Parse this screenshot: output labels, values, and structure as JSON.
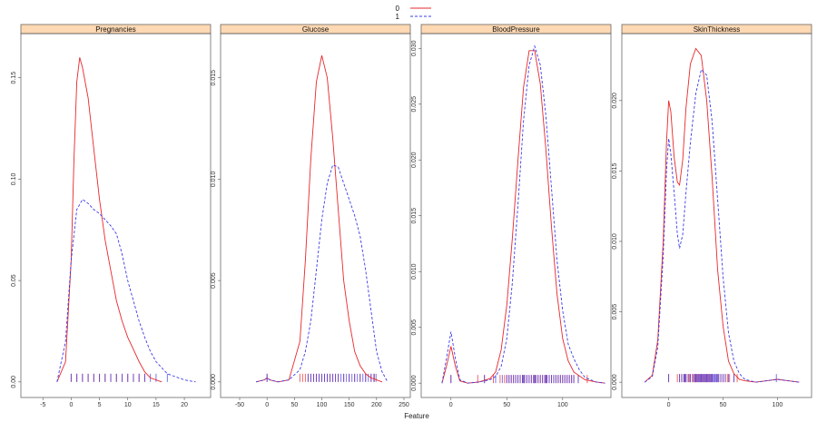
{
  "chart_data": {
    "type": "line",
    "xlabel": "Feature",
    "ylabel": "",
    "legend": {
      "placement": "top-center",
      "entries": [
        {
          "label": "0",
          "color": "#e8272a",
          "dash": "solid"
        },
        {
          "label": "1",
          "color": "#3b3be8",
          "dash": "dashed"
        }
      ]
    },
    "rug": {
      "color_0": "#e8272a",
      "color_1": "#3b3be8"
    },
    "strip_color": "#ffd9b3",
    "panels": [
      {
        "title": "Pregnancies",
        "xlim": [
          -6,
          24
        ],
        "ylim": [
          -0.005,
          0.17
        ],
        "xticks": [
          -5,
          0,
          5,
          10,
          15,
          20
        ],
        "yticks": [
          0.0,
          0.05,
          0.1,
          0.15
        ],
        "ytick_labels": [
          "0.00",
          "0.05",
          "0.10",
          "0.15"
        ],
        "series": [
          {
            "name": "0",
            "x": [
              -2.5,
              -1,
              0,
              0.5,
              1,
              1.5,
              2,
              3,
              4,
              5,
              6,
              7,
              8,
              9,
              10,
              11,
              12,
              13,
              14,
              16
            ],
            "y": [
              0,
              0.01,
              0.06,
              0.11,
              0.148,
              0.16,
              0.155,
              0.14,
              0.115,
              0.09,
              0.07,
              0.055,
              0.04,
              0.03,
              0.022,
              0.016,
              0.01,
              0.005,
              0.002,
              0
            ]
          },
          {
            "name": "1",
            "x": [
              -2.5,
              -1,
              0,
              1,
              2,
              3,
              4,
              5,
              6,
              7,
              8,
              9,
              10,
              11,
              12,
              13,
              14,
              15,
              17,
              20,
              22
            ],
            "y": [
              0,
              0.02,
              0.06,
              0.085,
              0.09,
              0.088,
              0.085,
              0.083,
              0.08,
              0.077,
              0.073,
              0.063,
              0.05,
              0.04,
              0.03,
              0.022,
              0.015,
              0.01,
              0.004,
              0.001,
              0
            ]
          }
        ],
        "rug0": [
          0,
          1,
          2,
          3,
          4,
          5,
          6,
          7,
          8,
          9,
          10,
          11,
          12,
          13
        ],
        "rug1": [
          0,
          1,
          2,
          3,
          4,
          5,
          6,
          7,
          8,
          9,
          10,
          11,
          12,
          13,
          14,
          15,
          17
        ]
      },
      {
        "title": "Glucose",
        "xlim": [
          -55,
          255
        ],
        "ylim": [
          -0.0005,
          0.017
        ],
        "xticks": [
          -50,
          0,
          50,
          100,
          150,
          200,
          250
        ],
        "yticks": [
          0.0,
          0.005,
          0.01,
          0.015
        ],
        "ytick_labels": [
          "0.000",
          "0.005",
          "0.010",
          "0.015"
        ],
        "series": [
          {
            "name": "0",
            "x": [
              -20,
              -5,
              0,
              5,
              20,
              40,
              60,
              70,
              80,
              90,
              100,
              110,
              120,
              130,
              140,
              150,
              160,
              170,
              180,
              190,
              200,
              210
            ],
            "y": [
              0,
              0.0001,
              0.0002,
              0.0001,
              0,
              0.0001,
              0.002,
              0.006,
              0.011,
              0.0148,
              0.0161,
              0.015,
              0.012,
              0.0085,
              0.005,
              0.003,
              0.0015,
              0.0008,
              0.0004,
              0.0002,
              0.0001,
              0
            ]
          },
          {
            "name": "1",
            "x": [
              -20,
              -5,
              0,
              5,
              20,
              40,
              60,
              70,
              80,
              90,
              100,
              110,
              120,
              130,
              140,
              150,
              160,
              170,
              180,
              190,
              200,
              210,
              220
            ],
            "y": [
              0,
              0.0001,
              0.0002,
              0.0001,
              0,
              0.0001,
              0.0006,
              0.0015,
              0.003,
              0.0055,
              0.008,
              0.0098,
              0.0107,
              0.0106,
              0.0098,
              0.009,
              0.0082,
              0.0072,
              0.0055,
              0.0035,
              0.0015,
              0.0005,
              0
            ]
          }
        ],
        "rug0": [
          0,
          60,
          65,
          70,
          75,
          80,
          85,
          90,
          95,
          100,
          105,
          110,
          115,
          120,
          125,
          130,
          140,
          150,
          160,
          170,
          180,
          190,
          196
        ],
        "rug1": [
          0,
          75,
          80,
          85,
          90,
          95,
          100,
          105,
          110,
          115,
          120,
          125,
          130,
          135,
          140,
          145,
          150,
          155,
          160,
          165,
          170,
          175,
          180,
          185,
          190,
          195,
          199
        ]
      },
      {
        "title": "BloodPressure",
        "xlim": [
          -12,
          140
        ],
        "ylim": [
          -0.0008,
          0.031
        ],
        "xticks": [
          0,
          50,
          100
        ],
        "yticks": [
          0.0,
          0.005,
          0.01,
          0.015,
          0.02,
          0.025,
          0.03
        ],
        "ytick_labels": [
          "0.000",
          "0.005",
          "0.010",
          "0.015",
          "0.020",
          "0.025",
          "0.030"
        ],
        "series": [
          {
            "name": "0",
            "x": [
              -8,
              -4,
              0,
              4,
              8,
              15,
              25,
              35,
              40,
              45,
              50,
              55,
              60,
              65,
              70,
              75,
              80,
              85,
              90,
              95,
              100,
              105,
              110,
              120,
              130,
              138
            ],
            "y": [
              0,
              0.0015,
              0.0033,
              0.0015,
              0.0002,
              0,
              0.0001,
              0.0004,
              0.001,
              0.003,
              0.007,
              0.013,
              0.02,
              0.0265,
              0.0298,
              0.0298,
              0.0268,
              0.021,
              0.014,
              0.008,
              0.004,
              0.002,
              0.001,
              0.0003,
              0.0001,
              0
            ]
          },
          {
            "name": "1",
            "x": [
              -8,
              -4,
              0,
              4,
              8,
              15,
              25,
              35,
              40,
              45,
              50,
              55,
              60,
              65,
              70,
              75,
              80,
              85,
              90,
              95,
              100,
              105,
              110,
              115,
              120,
              130,
              138
            ],
            "y": [
              0,
              0.0022,
              0.0046,
              0.0022,
              0.0003,
              0,
              0.0001,
              0.0003,
              0.0006,
              0.0015,
              0.004,
              0.009,
              0.016,
              0.0235,
              0.0285,
              0.0302,
              0.0285,
              0.024,
              0.0175,
              0.011,
              0.0065,
              0.0035,
              0.0022,
              0.0012,
              0.0005,
              0.0001,
              0
            ]
          }
        ],
        "rug0": [
          0,
          24,
          30,
          38,
          44,
          48,
          50,
          52,
          54,
          56,
          58,
          60,
          62,
          64,
          65,
          66,
          68,
          70,
          72,
          74,
          75,
          76,
          78,
          80,
          82,
          84,
          85,
          86,
          88,
          90,
          92,
          94,
          96,
          98,
          100,
          102,
          104,
          106,
          108,
          110,
          114,
          122
        ],
        "rug1": [
          0,
          30,
          40,
          46,
          50,
          52,
          54,
          56,
          58,
          60,
          62,
          64,
          65,
          66,
          68,
          70,
          72,
          74,
          75,
          76,
          78,
          80,
          82,
          84,
          85,
          86,
          88,
          90,
          92,
          94,
          96,
          98,
          100,
          102,
          104,
          106,
          108,
          110,
          114
        ]
      },
      {
        "title": "SkinThickness",
        "xlim": [
          -28,
          128
        ],
        "ylim": [
          -0.0007,
          0.0245
        ],
        "xticks": [
          0,
          50,
          100
        ],
        "yticks": [
          0.0,
          0.005,
          0.01,
          0.015,
          0.02
        ],
        "ytick_labels": [
          "0.000",
          "0.005",
          "0.010",
          "0.015",
          "0.020"
        ],
        "series": [
          {
            "name": "0",
            "x": [
              -22,
              -15,
              -10,
              -5,
              -2,
              0,
              2,
              5,
              8,
              10,
              13,
              16,
              20,
              25,
              30,
              35,
              40,
              45,
              50,
              55,
              60,
              65,
              70,
              80,
              90,
              100,
              110,
              120
            ],
            "y": [
              0,
              0.0005,
              0.003,
              0.01,
              0.017,
              0.02,
              0.0192,
              0.016,
              0.0142,
              0.014,
              0.0158,
              0.0195,
              0.0226,
              0.0237,
              0.0232,
              0.02,
              0.0145,
              0.008,
              0.004,
              0.0015,
              0.0006,
              0.0002,
              0.0001,
              0,
              0.0001,
              0.0002,
              0.0001,
              0
            ]
          },
          {
            "name": "1",
            "x": [
              -22,
              -15,
              -10,
              -5,
              -2,
              0,
              2,
              5,
              8,
              10,
              13,
              16,
              20,
              25,
              30,
              35,
              40,
              45,
              50,
              55,
              60,
              65,
              70,
              80,
              90,
              100,
              110,
              120
            ],
            "y": [
              0,
              0.0004,
              0.0025,
              0.009,
              0.015,
              0.0173,
              0.0162,
              0.0135,
              0.0105,
              0.0095,
              0.0105,
              0.0135,
              0.017,
              0.0205,
              0.0222,
              0.0218,
              0.0185,
              0.013,
              0.0075,
              0.0035,
              0.0015,
              0.0006,
              0.0002,
              0,
              0.0001,
              0.0002,
              0.0001,
              0
            ]
          }
        ],
        "rug0": [
          0,
          8,
          10,
          12,
          14,
          15,
          16,
          18,
          19,
          20,
          22,
          23,
          24,
          25,
          26,
          27,
          28,
          29,
          30,
          31,
          32,
          33,
          34,
          35,
          36,
          37,
          38,
          39,
          40,
          42,
          44,
          46,
          48,
          50,
          52,
          54,
          56,
          60,
          63
        ],
        "rug1": [
          0,
          10,
          12,
          14,
          15,
          16,
          18,
          20,
          22,
          24,
          25,
          26,
          27,
          28,
          29,
          30,
          31,
          32,
          33,
          34,
          35,
          36,
          37,
          38,
          39,
          40,
          41,
          42,
          43,
          44,
          45,
          46,
          48,
          50,
          52,
          55,
          60,
          99
        ]
      }
    ]
  }
}
